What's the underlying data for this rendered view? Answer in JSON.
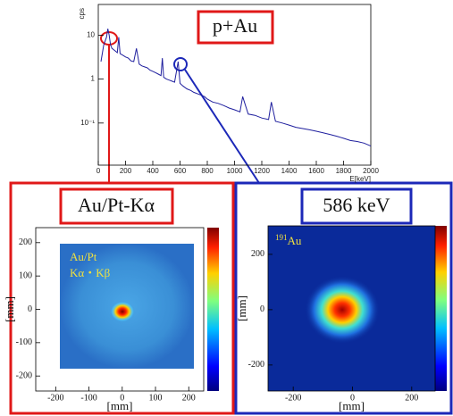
{
  "chart_data": [
    {
      "type": "line",
      "title": "p+Au",
      "xlabel": "E[keV]",
      "ylabel": "cps",
      "log_y": true,
      "x": [
        20,
        40,
        60,
        70,
        80,
        90,
        100,
        120,
        140,
        150,
        160,
        180,
        200,
        220,
        240,
        260,
        280,
        300,
        320,
        340,
        360,
        380,
        400,
        420,
        440,
        460,
        470,
        480,
        500,
        520,
        540,
        560,
        586,
        600,
        620,
        650,
        680,
        700,
        740,
        780,
        800,
        840,
        880,
        920,
        960,
        1000,
        1040,
        1060,
        1100,
        1150,
        1200,
        1250,
        1270,
        1300,
        1350,
        1400,
        1450,
        1500,
        1550,
        1600,
        1650,
        1700,
        1750,
        1800,
        1850,
        1900,
        1950,
        2000
      ],
      "series": [
        {
          "color": "#1f1f9e",
          "values": [
            2.5,
            6,
            9,
            14,
            10,
            6,
            5,
            4.5,
            4,
            9,
            3.8,
            3.5,
            3.2,
            3,
            2.6,
            2.5,
            5,
            2.2,
            2,
            1.9,
            1.8,
            1.6,
            1.5,
            1.4,
            1.3,
            1.2,
            3,
            1.1,
            1,
            0.95,
            0.9,
            0.85,
            2.5,
            0.8,
            0.7,
            0.6,
            0.55,
            0.5,
            0.45,
            0.4,
            0.35,
            0.3,
            0.28,
            0.25,
            0.22,
            0.2,
            0.18,
            0.4,
            0.16,
            0.15,
            0.13,
            0.12,
            0.3,
            0.11,
            0.1,
            0.09,
            0.08,
            0.075,
            0.07,
            0.065,
            0.06,
            0.055,
            0.05,
            0.045,
            0.04,
            0.038,
            0.035,
            0.03
          ]
        }
      ],
      "xlim": [
        0,
        2000
      ],
      "xticks": [
        0,
        200,
        400,
        600,
        800,
        1000,
        1200,
        1400,
        1600,
        1800,
        2000
      ],
      "ylim": [
        0.011,
        50
      ],
      "yticks": [
        10,
        1,
        {
          "value": 0.1,
          "label": "10⁻¹"
        }
      ]
    },
    {
      "type": "heatmap",
      "title": "Au/Pt-Kα",
      "annotation": [
        "Au/Pt",
        "Kα・Kβ"
      ],
      "xlabel": "[mm]",
      "ylabel": "[mm]",
      "xlim": [
        -260,
        245
      ],
      "xticks": [
        -200,
        -100,
        0,
        100,
        200
      ],
      "ylim": [
        -245,
        245
      ],
      "yticks": [
        -200,
        -100,
        0,
        100,
        200
      ]
    },
    {
      "type": "heatmap",
      "title": "586 keV",
      "annotation": {
        "superscript": "191",
        "text": "Au"
      },
      "xlabel": "[mm]",
      "ylabel": "[mm]",
      "xlim": [
        -285,
        279
      ],
      "xticks": [
        -200,
        0,
        200
      ],
      "ylim": [
        -294,
        303
      ],
      "yticks": [
        -200,
        0,
        200
      ]
    }
  ]
}
